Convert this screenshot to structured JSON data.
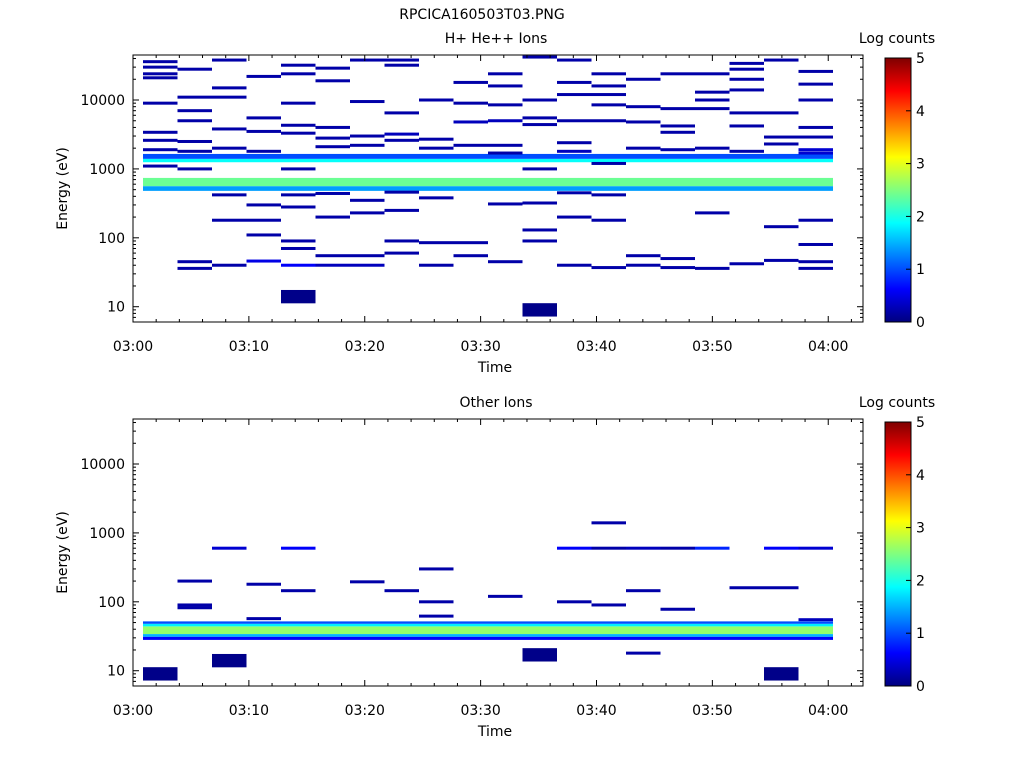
{
  "title": "RPCICA160503T03.PNG",
  "colormap": {
    "stops": [
      "#00007f",
      "#0000ff",
      "#00ffff",
      "#ffff00",
      "#ff0000",
      "#7f0000"
    ],
    "range": [
      0,
      5
    ]
  },
  "chart_data": [
    {
      "type": "heatmap",
      "title": "H+ He++ Ions",
      "xlabel": "Time",
      "ylabel": "Energy (eV)",
      "colorbar_label": "Log counts",
      "colorbar_ticks": [
        "0",
        "1",
        "2",
        "3",
        "4",
        "5"
      ],
      "x_ticks": [
        "03:00",
        "03:10",
        "03:20",
        "03:30",
        "03:40",
        "03:50",
        "04:00"
      ],
      "y_ticks": [
        "10",
        "100",
        "1000",
        "10000"
      ],
      "yscale": "log",
      "xlim": [
        "03:00",
        "04:03"
      ],
      "ylim": [
        6,
        45000
      ],
      "time_bins": 20,
      "bands": [
        {
          "elo": 560,
          "ehi": 740,
          "v": 2.4
        },
        {
          "elo": 480,
          "ehi": 560,
          "v": 1.4
        },
        {
          "elo": 1250,
          "ehi": 1400,
          "v": 1.9
        },
        {
          "elo": 1400,
          "ehi": 1650,
          "v": 1.0
        }
      ],
      "cells": [
        {
          "b": 0,
          "e": 36000,
          "v": 0.2
        },
        {
          "b": 0,
          "e": 30000,
          "v": 0.2
        },
        {
          "b": 0,
          "e": 24000,
          "v": 0.2
        },
        {
          "b": 0,
          "e": 21000,
          "v": 0.2
        },
        {
          "b": 0,
          "e": 9000,
          "v": 0.2
        },
        {
          "b": 0,
          "e": 3400,
          "v": 0.2
        },
        {
          "b": 0,
          "e": 2600,
          "v": 0.2
        },
        {
          "b": 0,
          "e": 1900,
          "v": 0.2
        },
        {
          "b": 0,
          "e": 1100,
          "v": 0.2
        },
        {
          "b": 1,
          "e": 28000,
          "v": 0.2
        },
        {
          "b": 1,
          "e": 11000,
          "v": 0.2
        },
        {
          "b": 1,
          "e": 7000,
          "v": 0.2
        },
        {
          "b": 1,
          "e": 5000,
          "v": 0.2
        },
        {
          "b": 1,
          "e": 2500,
          "v": 0.2
        },
        {
          "b": 1,
          "e": 1800,
          "v": 0.2
        },
        {
          "b": 1,
          "e": 1000,
          "v": 0.2
        },
        {
          "b": 1,
          "e": 45,
          "v": 0.2
        },
        {
          "b": 1,
          "e": 36,
          "v": 0.2
        },
        {
          "b": 2,
          "e": 38000,
          "v": 0.2
        },
        {
          "b": 2,
          "e": 15000,
          "v": 0.2
        },
        {
          "b": 2,
          "e": 11000,
          "v": 0.2
        },
        {
          "b": 2,
          "e": 3800,
          "v": 0.2
        },
        {
          "b": 2,
          "e": 2000,
          "v": 0.2
        },
        {
          "b": 2,
          "e": 420,
          "v": 0.2
        },
        {
          "b": 2,
          "e": 180,
          "v": 0.2
        },
        {
          "b": 2,
          "e": 40,
          "v": 0.2
        },
        {
          "b": 3,
          "e": 22000,
          "v": 0.2
        },
        {
          "b": 3,
          "e": 5500,
          "v": 0.2
        },
        {
          "b": 3,
          "e": 3500,
          "v": 0.2
        },
        {
          "b": 3,
          "e": 1800,
          "v": 0.2
        },
        {
          "b": 3,
          "e": 300,
          "v": 0.2
        },
        {
          "b": 3,
          "e": 180,
          "v": 0.2
        },
        {
          "b": 3,
          "e": 110,
          "v": 0.2
        },
        {
          "b": 3,
          "e": 46,
          "v": 0.5
        },
        {
          "b": 4,
          "e": 32000,
          "v": 0.2
        },
        {
          "b": 4,
          "e": 24000,
          "v": 0.2
        },
        {
          "b": 4,
          "e": 9000,
          "v": 0.2
        },
        {
          "b": 4,
          "e": 4300,
          "v": 0.2
        },
        {
          "b": 4,
          "e": 3300,
          "v": 0.2
        },
        {
          "b": 4,
          "e": 1000,
          "v": 0.2
        },
        {
          "b": 4,
          "e": 420,
          "v": 0.2
        },
        {
          "b": 4,
          "e": 280,
          "v": 0.2
        },
        {
          "b": 4,
          "e": 90,
          "v": 0.2
        },
        {
          "b": 4,
          "e": 70,
          "v": 0.2
        },
        {
          "b": 4,
          "e": 40,
          "v": 0.6
        },
        {
          "b": 4,
          "e": 14,
          "v": 0.05,
          "h": true
        },
        {
          "b": 5,
          "e": 29000,
          "v": 0.2
        },
        {
          "b": 5,
          "e": 19000,
          "v": 0.2
        },
        {
          "b": 5,
          "e": 4000,
          "v": 0.2
        },
        {
          "b": 5,
          "e": 2800,
          "v": 0.2
        },
        {
          "b": 5,
          "e": 2100,
          "v": 0.2
        },
        {
          "b": 5,
          "e": 440,
          "v": 0.2
        },
        {
          "b": 5,
          "e": 200,
          "v": 0.2
        },
        {
          "b": 5,
          "e": 55,
          "v": 0.2
        },
        {
          "b": 5,
          "e": 40,
          "v": 0.3
        },
        {
          "b": 6,
          "e": 38000,
          "v": 0.2
        },
        {
          "b": 6,
          "e": 9500,
          "v": 0.2
        },
        {
          "b": 6,
          "e": 3000,
          "v": 0.2
        },
        {
          "b": 6,
          "e": 2200,
          "v": 0.2
        },
        {
          "b": 6,
          "e": 350,
          "v": 0.2
        },
        {
          "b": 6,
          "e": 230,
          "v": 0.2
        },
        {
          "b": 6,
          "e": 55,
          "v": 0.2
        },
        {
          "b": 6,
          "e": 40,
          "v": 0.3
        },
        {
          "b": 7,
          "e": 38000,
          "v": 0.2
        },
        {
          "b": 7,
          "e": 32000,
          "v": 0.2
        },
        {
          "b": 7,
          "e": 6500,
          "v": 0.2
        },
        {
          "b": 7,
          "e": 3200,
          "v": 0.3
        },
        {
          "b": 7,
          "e": 2600,
          "v": 0.2
        },
        {
          "b": 7,
          "e": 460,
          "v": 0.2
        },
        {
          "b": 7,
          "e": 250,
          "v": 0.2
        },
        {
          "b": 7,
          "e": 90,
          "v": 0.2
        },
        {
          "b": 7,
          "e": 60,
          "v": 0.2
        },
        {
          "b": 8,
          "e": 10000,
          "v": 0.2
        },
        {
          "b": 8,
          "e": 2700,
          "v": 0.2
        },
        {
          "b": 8,
          "e": 2000,
          "v": 0.2
        },
        {
          "b": 8,
          "e": 380,
          "v": 0.2
        },
        {
          "b": 8,
          "e": 85,
          "v": 0.2
        },
        {
          "b": 8,
          "e": 40,
          "v": 0.2
        },
        {
          "b": 9,
          "e": 18000,
          "v": 0.2
        },
        {
          "b": 9,
          "e": 9000,
          "v": 0.2
        },
        {
          "b": 9,
          "e": 4800,
          "v": 0.3
        },
        {
          "b": 9,
          "e": 2200,
          "v": 0.2
        },
        {
          "b": 9,
          "e": 85,
          "v": 0.2
        },
        {
          "b": 9,
          "e": 55,
          "v": 0.2
        },
        {
          "b": 10,
          "e": 24000,
          "v": 0.2
        },
        {
          "b": 10,
          "e": 16000,
          "v": 0.2
        },
        {
          "b": 10,
          "e": 8500,
          "v": 0.2
        },
        {
          "b": 10,
          "e": 5000,
          "v": 0.3
        },
        {
          "b": 10,
          "e": 2200,
          "v": 0.2
        },
        {
          "b": 10,
          "e": 1700,
          "v": 0.2
        },
        {
          "b": 10,
          "e": 310,
          "v": 0.2
        },
        {
          "b": 10,
          "e": 45,
          "v": 0.2
        },
        {
          "b": 11,
          "e": 42000,
          "v": 0.2
        },
        {
          "b": 11,
          "e": 10000,
          "v": 0.2
        },
        {
          "b": 11,
          "e": 5500,
          "v": 0.2
        },
        {
          "b": 11,
          "e": 4400,
          "v": 0.2
        },
        {
          "b": 11,
          "e": 1000,
          "v": 0.2
        },
        {
          "b": 11,
          "e": 320,
          "v": 0.2
        },
        {
          "b": 11,
          "e": 130,
          "v": 0.2
        },
        {
          "b": 11,
          "e": 90,
          "v": 0.2
        },
        {
          "b": 11,
          "e": 9,
          "v": 0.05,
          "h": true
        },
        {
          "b": 12,
          "e": 38000,
          "v": 0.2
        },
        {
          "b": 12,
          "e": 18000,
          "v": 0.2
        },
        {
          "b": 12,
          "e": 12000,
          "v": 0.2
        },
        {
          "b": 12,
          "e": 5000,
          "v": 0.2
        },
        {
          "b": 12,
          "e": 2400,
          "v": 0.2
        },
        {
          "b": 12,
          "e": 1800,
          "v": 0.3
        },
        {
          "b": 12,
          "e": 450,
          "v": 0.2
        },
        {
          "b": 12,
          "e": 200,
          "v": 0.2
        },
        {
          "b": 12,
          "e": 40,
          "v": 0.2
        },
        {
          "b": 13,
          "e": 24000,
          "v": 0.2
        },
        {
          "b": 13,
          "e": 16000,
          "v": 0.2
        },
        {
          "b": 13,
          "e": 12000,
          "v": 0.2
        },
        {
          "b": 13,
          "e": 8500,
          "v": 0.2
        },
        {
          "b": 13,
          "e": 5000,
          "v": 0.2
        },
        {
          "b": 13,
          "e": 1200,
          "v": 0.2
        },
        {
          "b": 13,
          "e": 420,
          "v": 0.2
        },
        {
          "b": 13,
          "e": 180,
          "v": 0.2
        },
        {
          "b": 13,
          "e": 37,
          "v": 0.2
        },
        {
          "b": 14,
          "e": 20000,
          "v": 0.2
        },
        {
          "b": 14,
          "e": 8000,
          "v": 0.2
        },
        {
          "b": 14,
          "e": 4800,
          "v": 0.2
        },
        {
          "b": 14,
          "e": 2000,
          "v": 0.2
        },
        {
          "b": 14,
          "e": 55,
          "v": 0.2
        },
        {
          "b": 14,
          "e": 40,
          "v": 0.2
        },
        {
          "b": 15,
          "e": 24000,
          "v": 0.2
        },
        {
          "b": 15,
          "e": 7500,
          "v": 0.2
        },
        {
          "b": 15,
          "e": 4200,
          "v": 0.2
        },
        {
          "b": 15,
          "e": 3400,
          "v": 0.2
        },
        {
          "b": 15,
          "e": 1900,
          "v": 0.2
        },
        {
          "b": 15,
          "e": 50,
          "v": 0.2
        },
        {
          "b": 15,
          "e": 37,
          "v": 0.2
        },
        {
          "b": 16,
          "e": 24000,
          "v": 0.2
        },
        {
          "b": 16,
          "e": 13000,
          "v": 0.2
        },
        {
          "b": 16,
          "e": 10000,
          "v": 0.2
        },
        {
          "b": 16,
          "e": 7500,
          "v": 0.2
        },
        {
          "b": 16,
          "e": 2000,
          "v": 0.2
        },
        {
          "b": 16,
          "e": 230,
          "v": 0.2
        },
        {
          "b": 16,
          "e": 36,
          "v": 0.2
        },
        {
          "b": 17,
          "e": 34000,
          "v": 0.2
        },
        {
          "b": 17,
          "e": 28000,
          "v": 0.2
        },
        {
          "b": 17,
          "e": 20000,
          "v": 0.2
        },
        {
          "b": 17,
          "e": 14000,
          "v": 0.2
        },
        {
          "b": 17,
          "e": 6500,
          "v": 0.2
        },
        {
          "b": 17,
          "e": 4200,
          "v": 0.2
        },
        {
          "b": 17,
          "e": 1800,
          "v": 0.2
        },
        {
          "b": 17,
          "e": 42,
          "v": 0.2
        },
        {
          "b": 18,
          "e": 38000,
          "v": 0.2
        },
        {
          "b": 18,
          "e": 6500,
          "v": 0.2
        },
        {
          "b": 18,
          "e": 2900,
          "v": 0.2
        },
        {
          "b": 18,
          "e": 2300,
          "v": 0.2
        },
        {
          "b": 18,
          "e": 145,
          "v": 0.2
        },
        {
          "b": 18,
          "e": 47,
          "v": 0.2
        },
        {
          "b": 19,
          "e": 26000,
          "v": 0.2
        },
        {
          "b": 19,
          "e": 17000,
          "v": 0.2
        },
        {
          "b": 19,
          "e": 10000,
          "v": 0.2
        },
        {
          "b": 19,
          "e": 4000,
          "v": 0.2
        },
        {
          "b": 19,
          "e": 2900,
          "v": 0.2
        },
        {
          "b": 19,
          "e": 1900,
          "v": 0.4
        },
        {
          "b": 19,
          "e": 1700,
          "v": 0.4
        },
        {
          "b": 19,
          "e": 180,
          "v": 0.2
        },
        {
          "b": 19,
          "e": 80,
          "v": 0.2
        },
        {
          "b": 19,
          "e": 45,
          "v": 0.2
        },
        {
          "b": 19,
          "e": 36,
          "v": 0.2
        }
      ]
    },
    {
      "type": "heatmap",
      "title": "Other Ions",
      "xlabel": "Time",
      "ylabel": "Energy (eV)",
      "colorbar_label": "Log counts",
      "colorbar_ticks": [
        "0",
        "1",
        "2",
        "3",
        "4",
        "5"
      ],
      "x_ticks": [
        "03:00",
        "03:10",
        "03:20",
        "03:30",
        "03:40",
        "03:50",
        "04:00"
      ],
      "y_ticks": [
        "10",
        "100",
        "1000",
        "10000"
      ],
      "yscale": "log",
      "xlim": [
        "03:00",
        "04:03"
      ],
      "ylim": [
        6,
        45000
      ],
      "time_bins": 20,
      "bands": [
        {
          "elo": 34,
          "ehi": 44,
          "v": 2.6
        },
        {
          "elo": 44,
          "ehi": 48,
          "v": 1.8
        },
        {
          "elo": 48,
          "ehi": 52,
          "v": 1.0
        },
        {
          "elo": 31,
          "ehi": 34,
          "v": 1.5
        },
        {
          "elo": 28,
          "ehi": 31,
          "v": 0.6
        }
      ],
      "cells": [
        {
          "b": 0,
          "e": 9,
          "v": 0.05,
          "h": true
        },
        {
          "b": 1,
          "e": 200,
          "v": 0.2
        },
        {
          "b": 1,
          "e": 90,
          "v": 0.2
        },
        {
          "b": 1,
          "e": 82,
          "v": 0.2
        },
        {
          "b": 2,
          "e": 600,
          "v": 0.4
        },
        {
          "b": 2,
          "e": 14,
          "v": 0.05,
          "h": true
        },
        {
          "b": 3,
          "e": 180,
          "v": 0.2
        },
        {
          "b": 3,
          "e": 57,
          "v": 0.2
        },
        {
          "b": 4,
          "e": 600,
          "v": 0.6
        },
        {
          "b": 4,
          "e": 145,
          "v": 0.2
        },
        {
          "b": 6,
          "e": 195,
          "v": 0.2
        },
        {
          "b": 7,
          "e": 145,
          "v": 0.2
        },
        {
          "b": 8,
          "e": 300,
          "v": 0.2
        },
        {
          "b": 8,
          "e": 100,
          "v": 0.2
        },
        {
          "b": 8,
          "e": 62,
          "v": 0.2
        },
        {
          "b": 10,
          "e": 120,
          "v": 0.2
        },
        {
          "b": 11,
          "e": 17,
          "v": 0.05,
          "h": true
        },
        {
          "b": 12,
          "e": 600,
          "v": 0.6
        },
        {
          "b": 12,
          "e": 100,
          "v": 0.2
        },
        {
          "b": 13,
          "e": 1400,
          "v": 0.2
        },
        {
          "b": 13,
          "e": 600,
          "v": 0.2
        },
        {
          "b": 13,
          "e": 90,
          "v": 0.2
        },
        {
          "b": 14,
          "e": 600,
          "v": 0.3
        },
        {
          "b": 14,
          "e": 145,
          "v": 0.2
        },
        {
          "b": 14,
          "e": 18,
          "v": 0.2
        },
        {
          "b": 15,
          "e": 600,
          "v": 0.2
        },
        {
          "b": 15,
          "e": 78,
          "v": 0.2
        },
        {
          "b": 16,
          "e": 600,
          "v": 0.8
        },
        {
          "b": 17,
          "e": 160,
          "v": 0.2
        },
        {
          "b": 18,
          "e": 600,
          "v": 0.6
        },
        {
          "b": 18,
          "e": 160,
          "v": 0.2
        },
        {
          "b": 18,
          "e": 9,
          "v": 0.05,
          "h": true
        },
        {
          "b": 19,
          "e": 600,
          "v": 0.4
        },
        {
          "b": 19,
          "e": 55,
          "v": 0.3
        }
      ]
    }
  ]
}
